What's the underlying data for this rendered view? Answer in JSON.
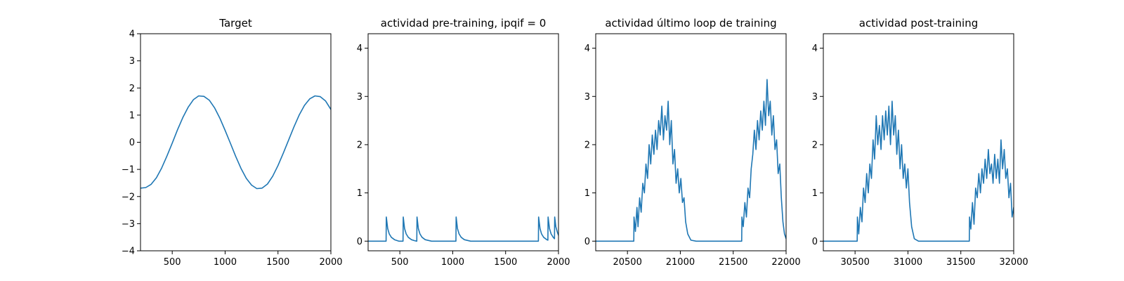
{
  "figure": {
    "background": "#ffffff",
    "series_color": "#1f77b4"
  },
  "chart_data": [
    {
      "type": "line",
      "title": "Target",
      "xlim": [
        200,
        2000
      ],
      "ylim": [
        -4,
        4
      ],
      "xticks": [
        500,
        1000,
        1500,
        2000
      ],
      "yticks": [
        -4,
        -3,
        -2,
        -1,
        0,
        1,
        2,
        3,
        4
      ],
      "grid": false,
      "series": [
        {
          "x": [
            200,
            250,
            300,
            350,
            400,
            450,
            500,
            550,
            600,
            650,
            700,
            750,
            800,
            850,
            900,
            950,
            1000,
            1050,
            1100,
            1150,
            1200,
            1250,
            1300,
            1350,
            1400,
            1450,
            1500,
            1550,
            1600,
            1650,
            1700,
            1750,
            1800,
            1850,
            1900,
            1950,
            2000
          ],
          "y": [
            -1.69,
            -1.67,
            -1.55,
            -1.31,
            -0.95,
            -0.51,
            -0.03,
            0.46,
            0.91,
            1.29,
            1.57,
            1.71,
            1.69,
            1.55,
            1.27,
            0.89,
            0.44,
            -0.04,
            -0.52,
            -0.96,
            -1.33,
            -1.58,
            -1.71,
            -1.69,
            -1.54,
            -1.25,
            -0.86,
            -0.4,
            0.08,
            0.56,
            1.0,
            1.36,
            1.6,
            1.71,
            1.68,
            1.52,
            1.21
          ]
        }
      ]
    },
    {
      "type": "line",
      "title": "actividad pre-training, ipqif = 0",
      "xlim": [
        200,
        2000
      ],
      "ylim": [
        -0.2,
        4.3
      ],
      "xticks": [
        500,
        1000,
        1500,
        2000
      ],
      "yticks": [
        0,
        1,
        2,
        3,
        4
      ],
      "grid": false,
      "series": [
        {
          "x": [
            200,
            370,
            372,
            385,
            400,
            420,
            450,
            490,
            530,
            532,
            545,
            560,
            580,
            610,
            640,
            660,
            662,
            675,
            690,
            710,
            740,
            800,
            1030,
            1032,
            1045,
            1060,
            1080,
            1110,
            1170,
            1810,
            1812,
            1825,
            1840,
            1860,
            1890,
            1900,
            1902,
            1915,
            1930,
            1950,
            1962,
            1964,
            1975,
            1990,
            2000
          ],
          "y": [
            0,
            0,
            0.5,
            0.26,
            0.15,
            0.08,
            0.03,
            0,
            0,
            0.5,
            0.26,
            0.15,
            0.08,
            0.03,
            0.01,
            0,
            0.5,
            0.26,
            0.15,
            0.08,
            0.03,
            0,
            0,
            0.5,
            0.26,
            0.15,
            0.08,
            0.03,
            0,
            0,
            0.5,
            0.26,
            0.15,
            0.08,
            0.03,
            0.02,
            0.5,
            0.26,
            0.15,
            0.08,
            0.05,
            0.5,
            0.3,
            0.18,
            0.12
          ]
        }
      ]
    },
    {
      "type": "line",
      "title": "actividad último loop de training",
      "xlim": [
        20200,
        22000
      ],
      "ylim": [
        -0.2,
        4.3
      ],
      "xticks": [
        20500,
        21000,
        21500,
        22000
      ],
      "yticks": [
        0,
        1,
        2,
        3,
        4
      ],
      "grid": false,
      "series": [
        {
          "x": [
            20200,
            20560,
            20562,
            20575,
            20590,
            20600,
            20615,
            20630,
            20645,
            20660,
            20675,
            20690,
            20705,
            20720,
            20735,
            20750,
            20765,
            20780,
            20795,
            20810,
            20825,
            20840,
            20855,
            20870,
            20885,
            20900,
            20915,
            20930,
            20945,
            20960,
            20975,
            20990,
            21005,
            21020,
            21035,
            21050,
            21070,
            21100,
            21150,
            21580,
            21582,
            21595,
            21610,
            21625,
            21640,
            21655,
            21670,
            21685,
            21700,
            21715,
            21730,
            21745,
            21760,
            21775,
            21790,
            21805,
            21820,
            21835,
            21850,
            21865,
            21880,
            21895,
            21910,
            21925,
            21940,
            21955,
            21970,
            21985,
            22000
          ],
          "y": [
            0,
            0,
            0.5,
            0.2,
            0.7,
            0.3,
            0.9,
            0.6,
            1.2,
            1.0,
            1.6,
            1.3,
            2.0,
            1.6,
            2.2,
            1.8,
            2.3,
            1.9,
            2.5,
            2.2,
            2.8,
            2.1,
            2.6,
            2.3,
            2.9,
            2.0,
            2.5,
            1.6,
            1.9,
            1.2,
            1.5,
            1.0,
            1.3,
            0.8,
            0.9,
            0.4,
            0.15,
            0.02,
            0,
            0,
            0.5,
            0.3,
            0.8,
            0.5,
            1.1,
            0.9,
            1.5,
            1.8,
            2.3,
            1.9,
            2.5,
            2.1,
            2.7,
            2.3,
            2.9,
            2.4,
            3.35,
            2.6,
            2.9,
            2.2,
            2.6,
            1.9,
            2.1,
            1.4,
            1.6,
            0.9,
            0.4,
            0.15,
            0.05
          ]
        }
      ]
    },
    {
      "type": "line",
      "title": "actividad post-training",
      "xlim": [
        30200,
        32000
      ],
      "ylim": [
        -0.2,
        4.3
      ],
      "xticks": [
        30500,
        31000,
        31500,
        32000
      ],
      "yticks": [
        0,
        1,
        2,
        3,
        4
      ],
      "grid": false,
      "series": [
        {
          "x": [
            30200,
            30520,
            30522,
            30535,
            30550,
            30565,
            30580,
            30595,
            30610,
            30625,
            30640,
            30655,
            30670,
            30685,
            30700,
            30715,
            30730,
            30745,
            30760,
            30775,
            30790,
            30805,
            30820,
            30835,
            30850,
            30865,
            30880,
            30895,
            30910,
            30925,
            30940,
            30955,
            30970,
            30985,
            31000,
            31015,
            31035,
            31060,
            31100,
            31580,
            31582,
            31595,
            31610,
            31625,
            31640,
            31655,
            31670,
            31685,
            31700,
            31715,
            31730,
            31745,
            31760,
            31775,
            31790,
            31805,
            31820,
            31835,
            31850,
            31865,
            31880,
            31895,
            31910,
            31925,
            31940,
            31955,
            31970,
            31985,
            32000
          ],
          "y": [
            0,
            0,
            0.5,
            0.15,
            0.7,
            0.4,
            1.1,
            0.8,
            1.4,
            1.0,
            1.6,
            1.3,
            2.1,
            1.7,
            2.6,
            2.0,
            2.4,
            1.9,
            2.6,
            2.1,
            2.7,
            2.2,
            2.8,
            2.0,
            2.9,
            2.2,
            2.6,
            1.8,
            2.3,
            1.5,
            2.0,
            1.3,
            1.6,
            1.1,
            1.5,
            0.8,
            0.3,
            0.05,
            0,
            0,
            0.5,
            0.25,
            0.8,
            0.35,
            1.1,
            0.9,
            1.4,
            1.0,
            1.5,
            1.2,
            1.7,
            1.3,
            1.9,
            1.4,
            1.6,
            1.2,
            1.8,
            1.3,
            1.7,
            1.2,
            2.1,
            1.5,
            1.9,
            1.3,
            1.5,
            0.9,
            1.2,
            0.5,
            0.7
          ]
        }
      ]
    }
  ]
}
